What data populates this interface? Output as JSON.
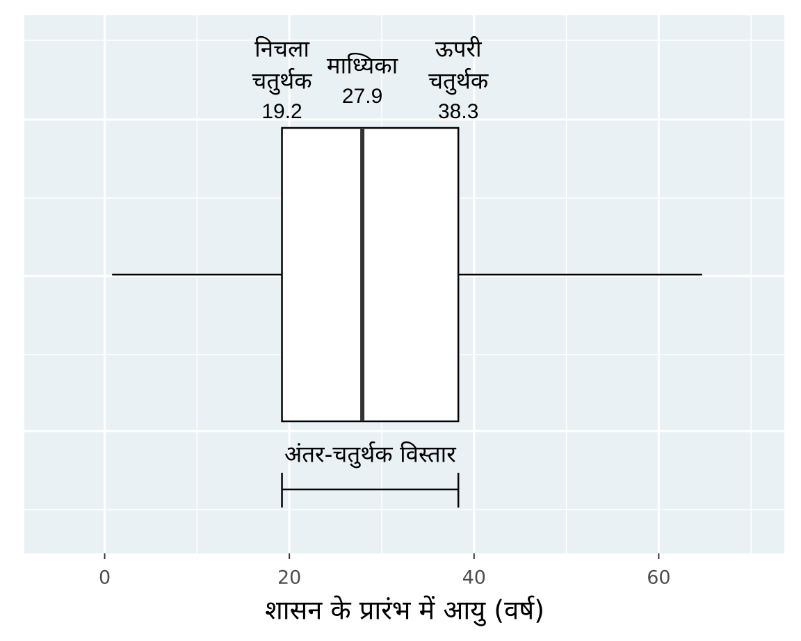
{
  "chart_data": {
    "type": "box",
    "xlabel": "शासन के प्रारंभ में आयु (वर्ष)",
    "xlim": [
      -8.7,
      73.6
    ],
    "xticks": [
      0,
      20,
      40,
      60
    ],
    "minor_xticks": [
      10,
      30,
      50,
      70
    ],
    "grid": true,
    "box": {
      "whislo": 0.8,
      "q1": 19.2,
      "med": 27.9,
      "q3": 38.3,
      "whishi": 64.7
    },
    "annotations": {
      "q1_label": [
        "निचला",
        "चतुर्थक"
      ],
      "med_label": [
        "माध्यिका"
      ],
      "q3_label": [
        "ऊपरी",
        "चतुर्थक"
      ],
      "iqr_label": "अंतर-चतुर्थक विस्तार"
    }
  }
}
